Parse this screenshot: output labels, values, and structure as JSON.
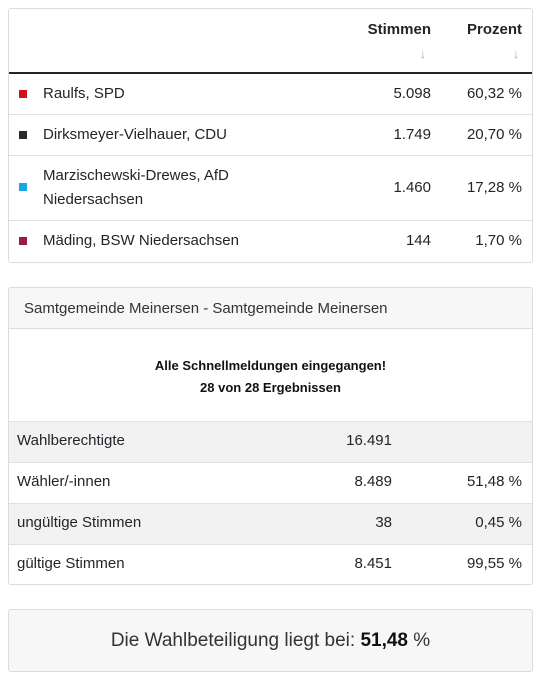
{
  "results": {
    "headers": {
      "stimmen": "Stimmen",
      "prozent": "Prozent",
      "sort_icon": "↓"
    },
    "rows": [
      {
        "name": "Raulfs, SPD",
        "stimmen": "5.098",
        "prozent": "60,32 %",
        "color": "#d0101e"
      },
      {
        "name": "Dirksmeyer-Vielhauer, CDU",
        "stimmen": "1.749",
        "prozent": "20,70 %",
        "color": "#2b2b2b"
      },
      {
        "name_line1": "Marzischewski-Drewes, AfD",
        "name_line2": "Niedersachsen",
        "stimmen": "1.460",
        "prozent": "17,28 %",
        "color": "#18a7e0"
      },
      {
        "name": "Mäding, BSW Niedersachsen",
        "stimmen": "144",
        "prozent": "1,70 %",
        "color": "#9b1b4a"
      }
    ]
  },
  "gemeinde": {
    "title": "Samtgemeinde Meinersen - Samtgemeinde Meinersen",
    "notice_line1": "Alle Schnellmeldungen eingegangen!",
    "notice_line2": "28 von 28 Ergebnissen",
    "stats": [
      {
        "label": "Wahlberechtigte",
        "value": "16.491",
        "percent": ""
      },
      {
        "label": "Wähler/-innen",
        "value": "8.489",
        "percent": "51,48 %"
      },
      {
        "label": "ungültige Stimmen",
        "value": "38",
        "percent": "0,45 %"
      },
      {
        "label": "gültige Stimmen",
        "value": "8.451",
        "percent": "99,55 %"
      }
    ]
  },
  "turnout": {
    "text": "Die Wahlbeteiligung liegt bei:",
    "value": "51,48",
    "unit": "%"
  }
}
